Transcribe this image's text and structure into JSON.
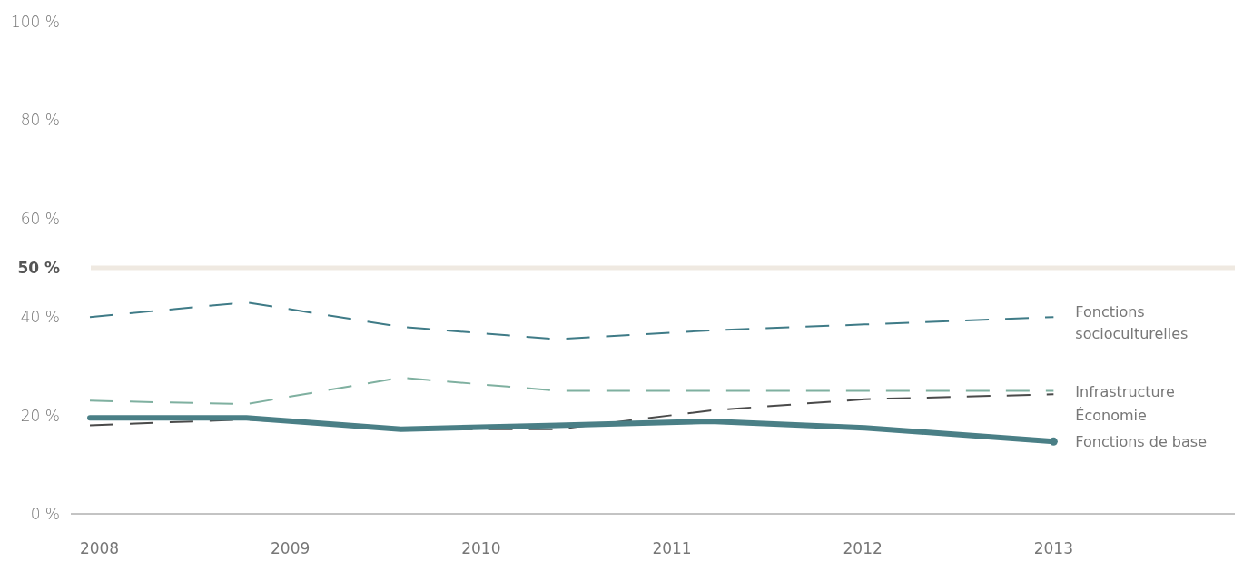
{
  "chart_data": {
    "type": "line",
    "x": [
      2007.95,
      2008.77,
      2009.58,
      2010.4,
      2011.2,
      2012.01,
      2013
    ],
    "xlim": [
      2007.85,
      2013.95
    ],
    "xticks": [
      2008,
      2009,
      2010,
      2011,
      2012,
      2013
    ],
    "ylim": [
      0,
      100
    ],
    "yticks": [
      {
        "value": 0,
        "label": "0 %"
      },
      {
        "value": 20,
        "label": "20 %"
      },
      {
        "value": 40,
        "label": "40 %"
      },
      {
        "value": 60,
        "label": "60 %"
      },
      {
        "value": 80,
        "label": "80 %"
      },
      {
        "value": 100,
        "label": "100 %"
      }
    ],
    "grid": false,
    "marker": "none",
    "ref_lines": [
      {
        "axis": "y",
        "value": 50,
        "label": "50 %",
        "color": "#efe9e1"
      }
    ],
    "series": [
      {
        "name": "Fonctions socioculturelles",
        "color": "#3f7b87",
        "line_style": "dashed",
        "values": [
          40,
          43,
          38,
          35.5,
          37.3,
          38.5,
          40
        ]
      },
      {
        "name": "Infrastructure",
        "color": "#7fb0a0",
        "line_style": "dashed",
        "values": [
          23,
          22.3,
          27.7,
          25,
          25,
          25,
          25
        ]
      },
      {
        "name": "Économie",
        "color": "#4a4a4a",
        "line_style": "dashed",
        "values": [
          18,
          19.2,
          17.2,
          17.2,
          21,
          23.3,
          24.3
        ]
      },
      {
        "name": "Fonctions de base",
        "color": "#4a7f86",
        "line_style": "solid",
        "values": [
          19.5,
          19.5,
          17.2,
          18,
          18.8,
          17.5,
          14.7
        ]
      }
    ]
  }
}
